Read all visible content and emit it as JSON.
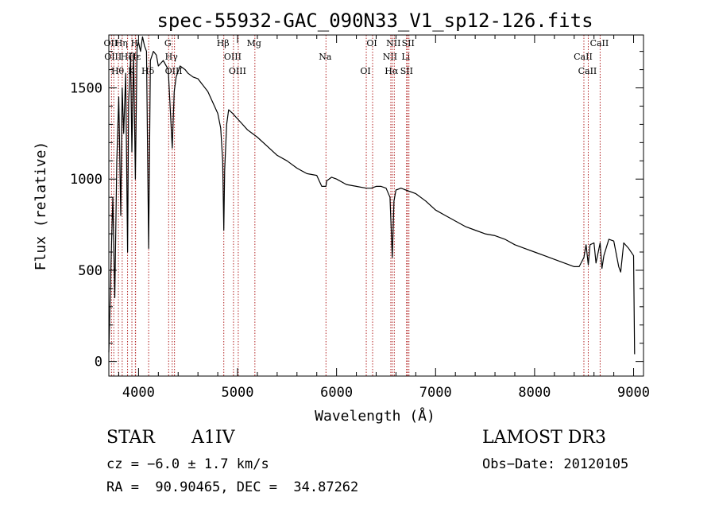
{
  "chart_data": {
    "type": "line",
    "title": "spec-55932-GAC_090N33_V1_sp12-126.fits",
    "xlabel": "Wavelength (Å)",
    "ylabel": "Flux (relative)",
    "xlim": [
      3700,
      9100
    ],
    "ylim": [
      -80,
      1790
    ],
    "xticks": [
      4000,
      5000,
      6000,
      7000,
      8000,
      9000
    ],
    "xtick_labels": [
      "4000",
      "5000",
      "6000",
      "7000",
      "8000",
      "9000"
    ],
    "yticks": [
      0,
      500,
      1000,
      1500
    ],
    "ytick_labels": [
      "0",
      "500",
      "1000",
      "1500"
    ],
    "grid": false,
    "legend": "none",
    "series": [
      {
        "name": "spectrum",
        "x": [
          3700,
          3720,
          3740,
          3760,
          3780,
          3800,
          3820,
          3835,
          3850,
          3870,
          3889,
          3900,
          3920,
          3933,
          3950,
          3968,
          3985,
          4000,
          4020,
          4040,
          4060,
          4080,
          4102,
          4120,
          4150,
          4180,
          4200,
          4250,
          4300,
          4340,
          4360,
          4380,
          4420,
          4471,
          4500,
          4550,
          4600,
          4700,
          4800,
          4830,
          4850,
          4861,
          4870,
          4890,
          4910,
          4950,
          5000,
          5050,
          5100,
          5150,
          5200,
          5300,
          5400,
          5500,
          5600,
          5700,
          5800,
          5850,
          5893,
          5900,
          5950,
          6000,
          6100,
          6200,
          6300,
          6350,
          6400,
          6450,
          6500,
          6540,
          6563,
          6580,
          6600,
          6650,
          6700,
          6800,
          6900,
          7000,
          7100,
          7200,
          7300,
          7400,
          7500,
          7600,
          7700,
          7800,
          7900,
          8000,
          8100,
          8200,
          8300,
          8400,
          8450,
          8498,
          8520,
          8542,
          8560,
          8600,
          8620,
          8662,
          8680,
          8700,
          8750,
          8800,
          8850,
          8870,
          8900,
          8950,
          9000,
          9010
        ],
        "y": [
          50,
          500,
          900,
          350,
          1100,
          1450,
          800,
          1500,
          1250,
          1580,
          600,
          1420,
          1670,
          1150,
          1690,
          1000,
          1720,
          1750,
          1700,
          1780,
          1730,
          1700,
          620,
          1650,
          1700,
          1680,
          1620,
          1650,
          1600,
          1170,
          1480,
          1560,
          1620,
          1600,
          1580,
          1560,
          1550,
          1480,
          1360,
          1280,
          1100,
          720,
          1050,
          1300,
          1380,
          1360,
          1330,
          1300,
          1270,
          1250,
          1230,
          1180,
          1130,
          1100,
          1060,
          1030,
          1020,
          960,
          960,
          990,
          1010,
          1000,
          970,
          960,
          950,
          950,
          960,
          960,
          950,
          900,
          570,
          880,
          940,
          950,
          940,
          920,
          880,
          830,
          800,
          770,
          740,
          720,
          700,
          690,
          670,
          640,
          620,
          600,
          580,
          560,
          540,
          520,
          520,
          570,
          640,
          530,
          640,
          650,
          540,
          650,
          510,
          580,
          670,
          660,
          520,
          490,
          650,
          620,
          580,
          40
        ]
      }
    ],
    "line_markers": [
      {
        "wavelength": 3727,
        "label": "OII"
      },
      {
        "wavelength": 3750,
        "label": "OIII"
      },
      {
        "wavelength": 3797,
        "label": "Hθ"
      },
      {
        "wavelength": 3835,
        "label": "Hη"
      },
      {
        "wavelength": 3889,
        "label": "Hζ"
      },
      {
        "wavelength": 3933,
        "label": "K"
      },
      {
        "wavelength": 3968,
        "label": "H"
      },
      {
        "wavelength": 3970,
        "label": "Hε"
      },
      {
        "wavelength": 4102,
        "label": "Hδ"
      },
      {
        "wavelength": 4304,
        "label": "G"
      },
      {
        "wavelength": 4340,
        "label": "Hγ"
      },
      {
        "wavelength": 4363,
        "label": "OIII"
      },
      {
        "wavelength": 4861,
        "label": "Hβ"
      },
      {
        "wavelength": 4959,
        "label": "OIII"
      },
      {
        "wavelength": 5007,
        "label": "OIII"
      },
      {
        "wavelength": 5175,
        "label": "Mg"
      },
      {
        "wavelength": 5893,
        "label": "Na"
      },
      {
        "wavelength": 6300,
        "label": "OI"
      },
      {
        "wavelength": 6364,
        "label": "OI"
      },
      {
        "wavelength": 6548,
        "label": "NII"
      },
      {
        "wavelength": 6563,
        "label": "Hα"
      },
      {
        "wavelength": 6583,
        "label": "NII"
      },
      {
        "wavelength": 6707,
        "label": "Li"
      },
      {
        "wavelength": 6716,
        "label": "SII"
      },
      {
        "wavelength": 6731,
        "label": "SII"
      },
      {
        "wavelength": 8498,
        "label": "CaII"
      },
      {
        "wavelength": 8542,
        "label": "CaII"
      },
      {
        "wavelength": 8662,
        "label": "CaII"
      }
    ],
    "annotations": {
      "object_class": "STAR",
      "subclass": "A1IV",
      "survey": "LAMOST DR3",
      "cz": "cz = −6.0 ± 1.7 km/s",
      "obs_date": "Obs−Date: 20120105",
      "coords": "RA =  90.90465, DEC =  34.87262"
    }
  },
  "colors": {
    "spectrum": "#000000",
    "marker": "#b22222",
    "axes": "#000000"
  }
}
